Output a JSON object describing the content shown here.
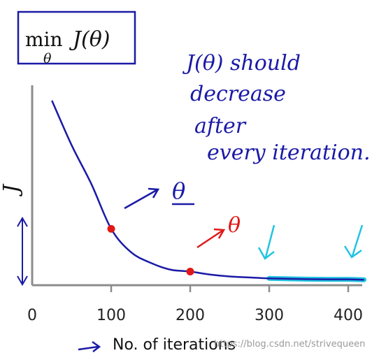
{
  "chart_data": {
    "type": "line",
    "title": "min J(θ)",
    "title_parts": {
      "op": "min",
      "subscript": "θ",
      "func": "J(θ)"
    },
    "xlabel": "No. of iterations",
    "ylabel": "",
    "xlim": [
      0,
      420
    ],
    "ylim": [
      0,
      1
    ],
    "xticks": [
      "0",
      "100",
      "200",
      "300",
      "400"
    ],
    "grid": false,
    "series": [
      {
        "color": "#1a1aa6",
        "x": [
          25,
          50,
          75,
          100,
          125,
          150,
          175,
          200,
          225,
          250,
          275,
          300,
          325,
          350,
          375,
          400,
          420
        ],
        "y": [
          0.95,
          0.72,
          0.52,
          0.29,
          0.17,
          0.115,
          0.08,
          0.07,
          0.055,
          0.045,
          0.04,
          0.035,
          0.033,
          0.031,
          0.03,
          0.03,
          0.028
        ]
      }
    ],
    "highlight": {
      "x_range": [
        290,
        420
      ],
      "color": "#22c4e0"
    },
    "points": [
      {
        "x": 100,
        "y": 0.29,
        "color": "#e01818",
        "label": "θ"
      },
      {
        "x": 200,
        "y": 0.07,
        "color": "#e01818",
        "label": "θ"
      }
    ],
    "annotations": {
      "note_lines": [
        "J(θ) should",
        "decrease",
        "after",
        "every iteration."
      ],
      "y_axis_mark": "J"
    }
  },
  "watermark": "https://blog.csdn.net/strivequeen",
  "colors": {
    "ink": "#1a1aa6",
    "axis": "#8c8c8c",
    "marker": "#e01818",
    "highlight": "#22c4e0"
  }
}
